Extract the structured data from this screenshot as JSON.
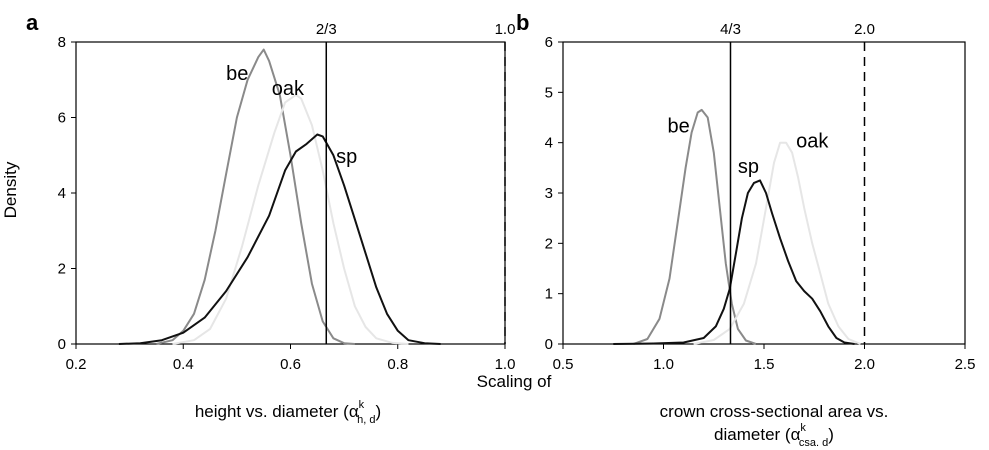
{
  "figure": {
    "shared_label": "Scaling of",
    "ylabel": "Density"
  },
  "chart_data": [
    {
      "panel": "a",
      "type": "line",
      "xlabel_main": "height vs. diameter (α",
      "xlabel_sup": "k",
      "xlabel_sub": "h, d",
      "xlabel_close": ")",
      "ylabel": "Density",
      "xlim": [
        0.2,
        1.0
      ],
      "ylim": [
        0,
        8
      ],
      "xticks": [
        0.2,
        0.4,
        0.6,
        0.8,
        1.0
      ],
      "xtick_labels": [
        "0.2",
        "0.4",
        "0.6",
        "0.8",
        "1.0"
      ],
      "yticks": [
        0,
        2,
        4,
        6,
        8
      ],
      "ytick_labels": [
        "0",
        "2",
        "4",
        "6",
        "8"
      ],
      "grid": false,
      "reference_lines": [
        {
          "x": 0.6667,
          "label": "2/3",
          "style": "solid"
        },
        {
          "x": 1.0,
          "label": "1.0",
          "style": "dashed"
        }
      ],
      "series": [
        {
          "name": "be",
          "color": "#8a8a8a",
          "points": [
            [
              0.35,
              0
            ],
            [
              0.38,
              0.1
            ],
            [
              0.4,
              0.35
            ],
            [
              0.42,
              0.8
            ],
            [
              0.44,
              1.7
            ],
            [
              0.46,
              3.0
            ],
            [
              0.48,
              4.5
            ],
            [
              0.5,
              6.0
            ],
            [
              0.52,
              7.0
            ],
            [
              0.54,
              7.6
            ],
            [
              0.55,
              7.8
            ],
            [
              0.56,
              7.5
            ],
            [
              0.58,
              6.6
            ],
            [
              0.6,
              5.0
            ],
            [
              0.62,
              3.2
            ],
            [
              0.64,
              1.6
            ],
            [
              0.66,
              0.6
            ],
            [
              0.68,
              0.15
            ],
            [
              0.7,
              0.02
            ],
            [
              0.72,
              0
            ]
          ]
        },
        {
          "name": "oak",
          "color": "#e6e6e6",
          "points": [
            [
              0.38,
              0
            ],
            [
              0.42,
              0.1
            ],
            [
              0.45,
              0.4
            ],
            [
              0.48,
              1.2
            ],
            [
              0.51,
              2.6
            ],
            [
              0.54,
              4.2
            ],
            [
              0.57,
              5.6
            ],
            [
              0.59,
              6.4
            ],
            [
              0.61,
              6.6
            ],
            [
              0.62,
              6.5
            ],
            [
              0.64,
              5.8
            ],
            [
              0.66,
              4.6
            ],
            [
              0.68,
              3.2
            ],
            [
              0.7,
              2.0
            ],
            [
              0.72,
              1.0
            ],
            [
              0.74,
              0.45
            ],
            [
              0.76,
              0.15
            ],
            [
              0.79,
              0.03
            ],
            [
              0.82,
              0
            ]
          ]
        },
        {
          "name": "sp",
          "color": "#111111",
          "points": [
            [
              0.28,
              0
            ],
            [
              0.32,
              0.02
            ],
            [
              0.36,
              0.1
            ],
            [
              0.4,
              0.3
            ],
            [
              0.44,
              0.7
            ],
            [
              0.48,
              1.4
            ],
            [
              0.52,
              2.3
            ],
            [
              0.56,
              3.4
            ],
            [
              0.59,
              4.6
            ],
            [
              0.61,
              5.1
            ],
            [
              0.63,
              5.3
            ],
            [
              0.65,
              5.55
            ],
            [
              0.66,
              5.5
            ],
            [
              0.68,
              5.0
            ],
            [
              0.7,
              4.2
            ],
            [
              0.72,
              3.3
            ],
            [
              0.74,
              2.4
            ],
            [
              0.76,
              1.5
            ],
            [
              0.78,
              0.8
            ],
            [
              0.8,
              0.35
            ],
            [
              0.82,
              0.1
            ],
            [
              0.85,
              0.02
            ],
            [
              0.88,
              0
            ]
          ]
        }
      ],
      "curve_labels": [
        {
          "text": "be",
          "x": 0.48,
          "y": 7.0
        },
        {
          "text": "oak",
          "x": 0.565,
          "y": 6.6
        },
        {
          "text": "sp",
          "x": 0.685,
          "y": 4.8
        }
      ]
    },
    {
      "panel": "b",
      "type": "line",
      "xlabel_line1": "crown cross-sectional area vs.",
      "xlabel_main": "diameter (α",
      "xlabel_sup": "k",
      "xlabel_sub": "csa. d",
      "xlabel_close": ")",
      "xlim": [
        0.5,
        2.5
      ],
      "ylim": [
        0,
        6
      ],
      "xticks": [
        0.5,
        1.0,
        1.5,
        2.0,
        2.5
      ],
      "xtick_labels": [
        "0.5",
        "1.0",
        "1.5",
        "2.0",
        "2.5"
      ],
      "yticks": [
        0,
        1,
        2,
        3,
        4,
        5,
        6
      ],
      "ytick_labels": [
        "0",
        "1",
        "2",
        "3",
        "4",
        "5",
        "6"
      ],
      "grid": false,
      "reference_lines": [
        {
          "x": 1.3333,
          "label": "4/3",
          "style": "solid"
        },
        {
          "x": 2.0,
          "label": "2.0",
          "style": "dashed"
        }
      ],
      "series": [
        {
          "name": "be",
          "color": "#8a8a8a",
          "points": [
            [
              0.85,
              0
            ],
            [
              0.92,
              0.1
            ],
            [
              0.98,
              0.5
            ],
            [
              1.03,
              1.3
            ],
            [
              1.07,
              2.4
            ],
            [
              1.11,
              3.5
            ],
            [
              1.14,
              4.2
            ],
            [
              1.17,
              4.6
            ],
            [
              1.19,
              4.65
            ],
            [
              1.22,
              4.5
            ],
            [
              1.25,
              3.8
            ],
            [
              1.28,
              2.7
            ],
            [
              1.31,
              1.6
            ],
            [
              1.34,
              0.8
            ],
            [
              1.37,
              0.3
            ],
            [
              1.41,
              0.07
            ],
            [
              1.46,
              0
            ]
          ]
        },
        {
          "name": "oak",
          "color": "#e6e6e6",
          "points": [
            [
              1.15,
              0
            ],
            [
              1.25,
              0.08
            ],
            [
              1.33,
              0.3
            ],
            [
              1.4,
              0.8
            ],
            [
              1.46,
              1.6
            ],
            [
              1.51,
              2.7
            ],
            [
              1.55,
              3.6
            ],
            [
              1.58,
              4.0
            ],
            [
              1.61,
              4.0
            ],
            [
              1.64,
              3.8
            ],
            [
              1.67,
              3.3
            ],
            [
              1.7,
              2.7
            ],
            [
              1.74,
              2.0
            ],
            [
              1.78,
              1.4
            ],
            [
              1.82,
              0.8
            ],
            [
              1.87,
              0.35
            ],
            [
              1.92,
              0.1
            ],
            [
              1.98,
              0
            ]
          ]
        },
        {
          "name": "sp",
          "color": "#111111",
          "points": [
            [
              0.75,
              0
            ],
            [
              0.95,
              0.01
            ],
            [
              1.1,
              0.03
            ],
            [
              1.2,
              0.12
            ],
            [
              1.26,
              0.35
            ],
            [
              1.3,
              0.7
            ],
            [
              1.33,
              1.1
            ],
            [
              1.36,
              1.8
            ],
            [
              1.39,
              2.5
            ],
            [
              1.42,
              3.0
            ],
            [
              1.45,
              3.2
            ],
            [
              1.48,
              3.25
            ],
            [
              1.51,
              3.0
            ],
            [
              1.54,
              2.6
            ],
            [
              1.58,
              2.1
            ],
            [
              1.62,
              1.65
            ],
            [
              1.66,
              1.25
            ],
            [
              1.7,
              1.05
            ],
            [
              1.74,
              0.9
            ],
            [
              1.78,
              0.65
            ],
            [
              1.82,
              0.35
            ],
            [
              1.86,
              0.12
            ],
            [
              1.9,
              0.03
            ],
            [
              1.95,
              0
            ]
          ]
        }
      ],
      "curve_labels": [
        {
          "text": "be",
          "x": 1.02,
          "y": 4.2
        },
        {
          "text": "sp",
          "x": 1.37,
          "y": 3.4
        },
        {
          "text": "oak",
          "x": 1.66,
          "y": 3.9
        }
      ]
    }
  ]
}
